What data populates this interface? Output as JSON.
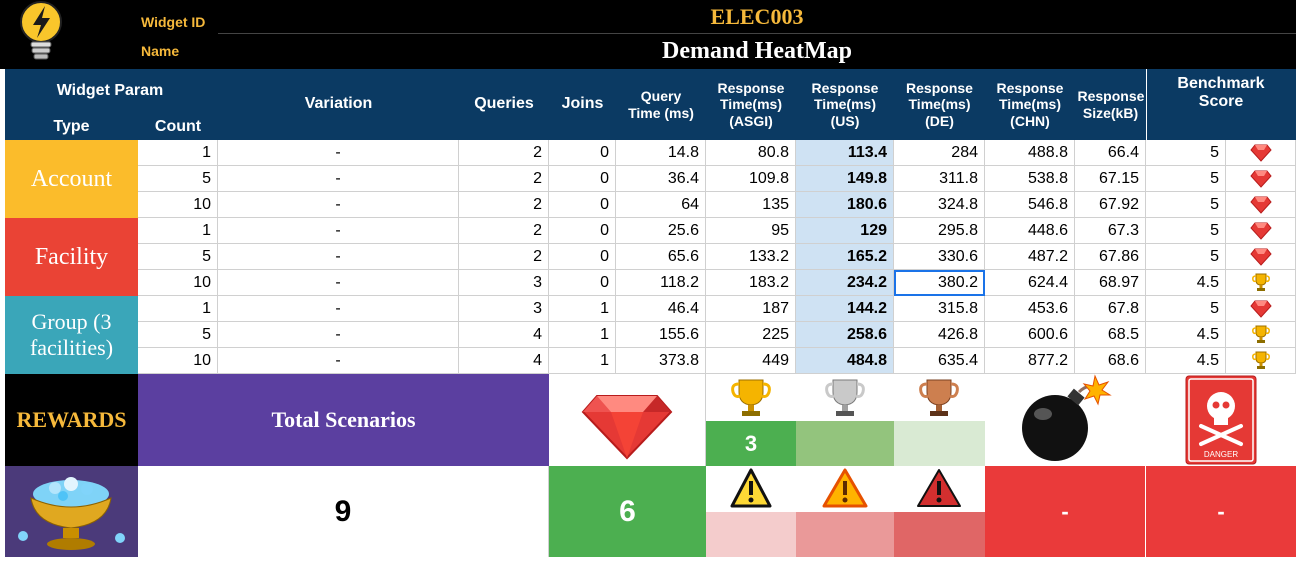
{
  "header": {
    "widget_id_label": "Widget ID",
    "widget_id": "ELEC003",
    "name_label": "Name",
    "name": "Demand HeatMap",
    "logo_icon": "lightbulb-icon"
  },
  "columns": {
    "widget_param": "Widget Param",
    "type": "Type",
    "count": "Count",
    "variation": "Variation",
    "queries": "Queries",
    "joins": "Joins",
    "query_time": "Query Time (ms)",
    "rt_asgi": "Response Time(ms) (ASGI)",
    "rt_us": "Response Time(ms) (US)",
    "rt_de": "Response Time(ms) (DE)",
    "rt_chn": "Response Time(ms) (CHN)",
    "resp_size": "Response Size(kB)",
    "benchmark": "Benchmark Score"
  },
  "groups": [
    {
      "label": "Account",
      "color": "#fbbc2b"
    },
    {
      "label": "Facility",
      "color": "#ea4335"
    },
    {
      "label": "Group (3 facilities)",
      "color": "#3aa6b9"
    }
  ],
  "rows": [
    {
      "count": "1",
      "variation": "-",
      "queries": "2",
      "joins": "0",
      "qt": "14.8",
      "asgi": "80.8",
      "us": "113.4",
      "de": "284",
      "chn": "488.8",
      "size": "66.4",
      "score": "5",
      "medal": "gem"
    },
    {
      "count": "5",
      "variation": "-",
      "queries": "2",
      "joins": "0",
      "qt": "36.4",
      "asgi": "109.8",
      "us": "149.8",
      "de": "311.8",
      "chn": "538.8",
      "size": "67.15",
      "score": "5",
      "medal": "gem"
    },
    {
      "count": "10",
      "variation": "-",
      "queries": "2",
      "joins": "0",
      "qt": "64",
      "asgi": "135",
      "us": "180.6",
      "de": "324.8",
      "chn": "546.8",
      "size": "67.92",
      "score": "5",
      "medal": "gem"
    },
    {
      "count": "1",
      "variation": "-",
      "queries": "2",
      "joins": "0",
      "qt": "25.6",
      "asgi": "95",
      "us": "129",
      "de": "295.8",
      "chn": "448.6",
      "size": "67.3",
      "score": "5",
      "medal": "gem"
    },
    {
      "count": "5",
      "variation": "-",
      "queries": "2",
      "joins": "0",
      "qt": "65.6",
      "asgi": "133.2",
      "us": "165.2",
      "de": "330.6",
      "chn": "487.2",
      "size": "67.86",
      "score": "5",
      "medal": "gem"
    },
    {
      "count": "10",
      "variation": "-",
      "queries": "3",
      "joins": "0",
      "qt": "118.2",
      "asgi": "183.2",
      "us": "234.2",
      "de": "380.2",
      "chn": "624.4",
      "size": "68.97",
      "score": "4.5",
      "medal": "trophy"
    },
    {
      "count": "1",
      "variation": "-",
      "queries": "3",
      "joins": "1",
      "qt": "46.4",
      "asgi": "187",
      "us": "144.2",
      "de": "315.8",
      "chn": "453.6",
      "size": "67.8",
      "score": "5",
      "medal": "gem"
    },
    {
      "count": "5",
      "variation": "-",
      "queries": "4",
      "joins": "1",
      "qt": "155.6",
      "asgi": "225",
      "us": "258.6",
      "de": "426.8",
      "chn": "600.6",
      "size": "68.5",
      "score": "4.5",
      "medal": "trophy"
    },
    {
      "count": "10",
      "variation": "-",
      "queries": "4",
      "joins": "1",
      "qt": "373.8",
      "asgi": "449",
      "us": "484.8",
      "de": "635.4",
      "chn": "877.2",
      "size": "68.6",
      "score": "4.5",
      "medal": "trophy"
    }
  ],
  "rewards": {
    "label": "REWARDS",
    "total_label": "Total Scenarios",
    "total_value": "9",
    "gem_count": "6",
    "gold_count": "3",
    "bomb_value": "-",
    "danger_value": "-",
    "danger_text": "DANGER",
    "icons": [
      "gem-icon",
      "gold-trophy-icon",
      "silver-trophy-icon",
      "bronze-trophy-icon",
      "bomb-icon",
      "danger-skull-icon",
      "warning-icon",
      "treasure-bowl-icon"
    ]
  }
}
